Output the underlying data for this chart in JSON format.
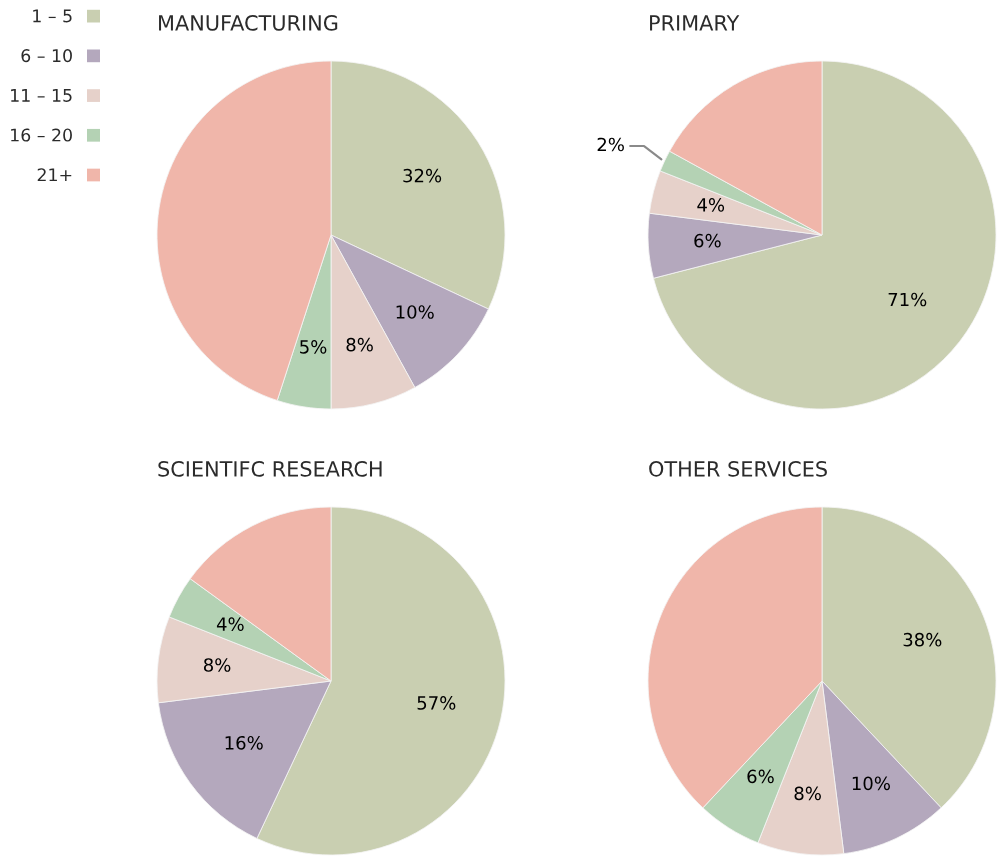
{
  "chart_data": [
    {
      "type": "pie",
      "title": "MANUFACTURING",
      "categories": [
        "1 – 5",
        "6 – 10",
        "11 – 15",
        "16 – 20",
        "21+"
      ],
      "values": [
        32,
        10,
        8,
        5,
        45
      ],
      "colors": [
        "#c9cfb1",
        "#b4a8bd",
        "#e6d1ca",
        "#b4d2b4",
        "#f0b6aa"
      ],
      "value_labels": [
        "32%",
        "10%",
        "8%",
        "5%",
        null
      ],
      "legend": "left"
    },
    {
      "type": "pie",
      "title": "PRIMARY",
      "categories": [
        null,
        null,
        null,
        null,
        null
      ],
      "values": [
        71,
        6,
        4,
        2,
        17
      ],
      "colors": [
        "#c9cfb1",
        "#b4a8bd",
        "#e6d1ca",
        "#b4d2b4",
        "#f0b6aa"
      ],
      "value_labels": [
        "71%",
        "6%",
        "4%",
        "2%",
        null
      ]
    },
    {
      "type": "pie",
      "title": "SCIENTIFC RESEARCH",
      "categories": [
        null,
        null,
        null,
        null,
        null
      ],
      "values": [
        57,
        16,
        8,
        4,
        15
      ],
      "colors": [
        "#c9cfb1",
        "#b4a8bd",
        "#e6d1ca",
        "#b4d2b4",
        "#f0b6aa"
      ],
      "value_labels": [
        "57%",
        "16%",
        "8%",
        "4%",
        null
      ]
    },
    {
      "type": "pie",
      "title": "OTHER SERVICES",
      "categories": [
        null,
        null,
        null,
        null,
        null
      ],
      "values": [
        38,
        10,
        8,
        6,
        38
      ],
      "colors": [
        "#c9cfb1",
        "#b4a8bd",
        "#e6d1ca",
        "#b4d2b4",
        "#f0b6aa"
      ],
      "value_labels": [
        "38%",
        "10%",
        "8%",
        "6%",
        null
      ]
    }
  ]
}
